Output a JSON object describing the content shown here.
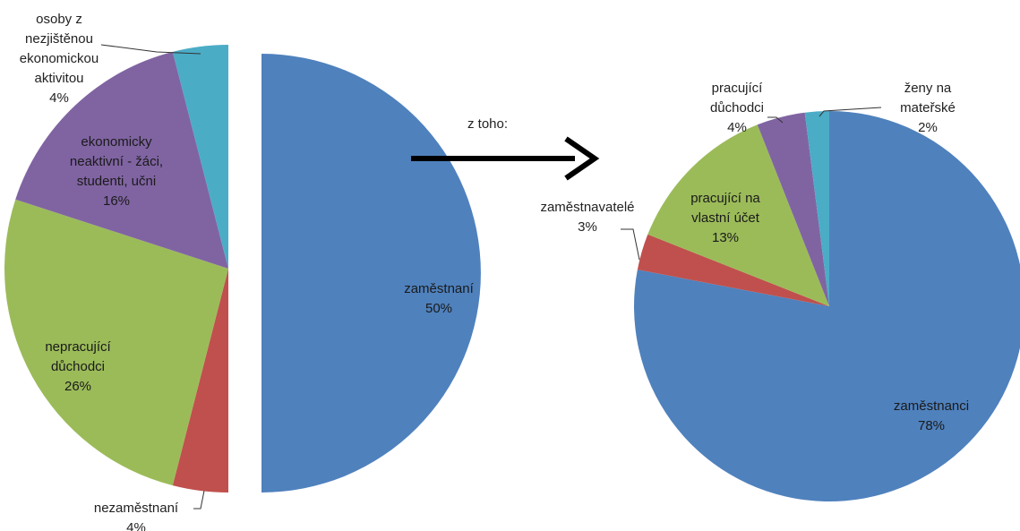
{
  "chart_data": [
    {
      "type": "pie",
      "title": "",
      "slices": [
        {
          "label_lines": [
            "zaměstnaní",
            "50%"
          ],
          "value": 50,
          "color": "#4F81BD"
        },
        {
          "label_lines": [
            "nezaměstnaní",
            "4%"
          ],
          "value": 4,
          "color": "#C0504D"
        },
        {
          "label_lines": [
            "nepracující",
            "důchodci",
            "26%"
          ],
          "value": 26,
          "color": "#9BBB59"
        },
        {
          "label_lines": [
            "ekonomicky",
            "neaktivní - žáci,",
            "studenti, učni",
            "16%"
          ],
          "value": 16,
          "color": "#8064A2"
        },
        {
          "label_lines": [
            "osoby z",
            "nezjištěnou",
            "ekonomickou",
            "aktivitou",
            "4%"
          ],
          "value": 4,
          "color": "#4BACC6"
        }
      ]
    },
    {
      "type": "pie",
      "title": "",
      "slices": [
        {
          "label_lines": [
            "zaměstnanci",
            "78%"
          ],
          "value": 78,
          "color": "#4F81BD"
        },
        {
          "label_lines": [
            "zaměstnavatelé",
            "3%"
          ],
          "value": 3,
          "color": "#C0504D"
        },
        {
          "label_lines": [
            "pracující na",
            "vlastní účet",
            "13%"
          ],
          "value": 13,
          "color": "#9BBB59"
        },
        {
          "label_lines": [
            "pracující",
            "důchodci",
            "4%"
          ],
          "value": 4,
          "color": "#8064A2"
        },
        {
          "label_lines": [
            "ženy na",
            "mateřské",
            "2%"
          ],
          "value": 2,
          "color": "#4BACC6"
        }
      ]
    }
  ],
  "connector": {
    "label": "z toho:"
  }
}
